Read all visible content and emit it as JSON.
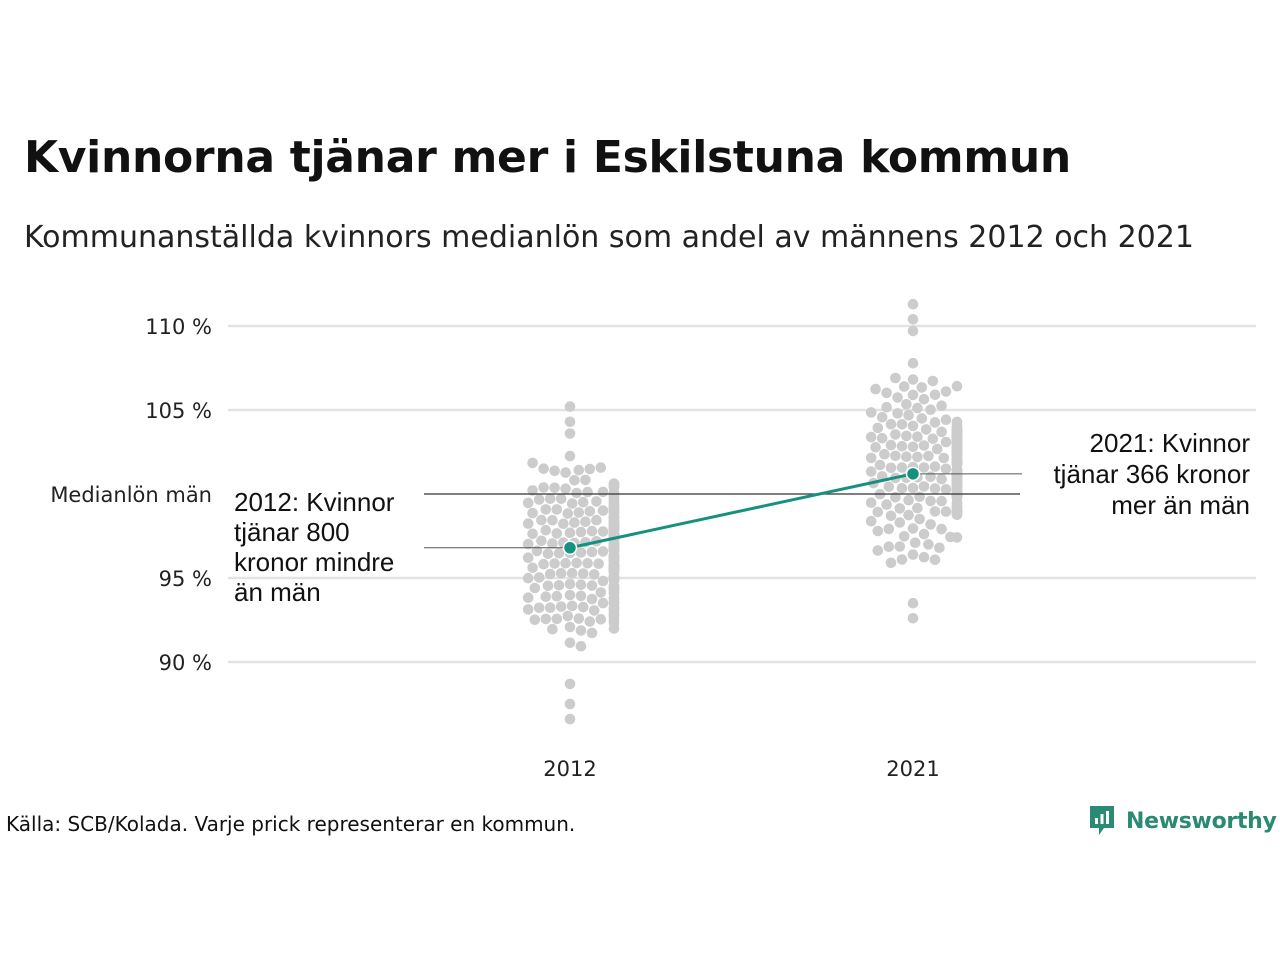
{
  "title": "Kvinnorna tjänar mer i Eskilstuna kommun",
  "subtitle": "Kommunanställda kvinnors medianlön som andel av männens 2012 och 2021",
  "source": "Källa: SCB/Kolada. Varje prick representerar en kommun.",
  "brand": {
    "name": "Newsworthy",
    "icon": "newsworthy-logo-icon",
    "color": "#2b8a73"
  },
  "colors": {
    "highlight": "#17917f",
    "dots": "#cccccc",
    "grid": "#e3e3e3",
    "reference": "#333333"
  },
  "chart_data": {
    "type": "scatter",
    "subtype": "beeswarm",
    "categories": [
      "2012",
      "2021"
    ],
    "ylim": [
      86,
      112
    ],
    "yticks": [
      90,
      95,
      105,
      110
    ],
    "ytick_labels": [
      "90 %",
      "95 %",
      "105 %",
      "110 %"
    ],
    "reference_line": {
      "value": 100,
      "label": "Medianlön män"
    },
    "highlight": {
      "values": [
        96.8,
        101.2
      ],
      "annotations": [
        "2012: Kvinnor\ntjänar 800\nkronor mindre\nän män",
        "2021: Kvinnor\ntjänar 366 kronor\nmer än män"
      ]
    },
    "distributions": [
      {
        "category": "2012",
        "min": 86.6,
        "max": 105.2,
        "median": 96.5,
        "count": 290
      },
      {
        "category": "2021",
        "min": 92.6,
        "max": 111.3,
        "median": 101.6,
        "count": 290
      }
    ],
    "grid": true
  }
}
